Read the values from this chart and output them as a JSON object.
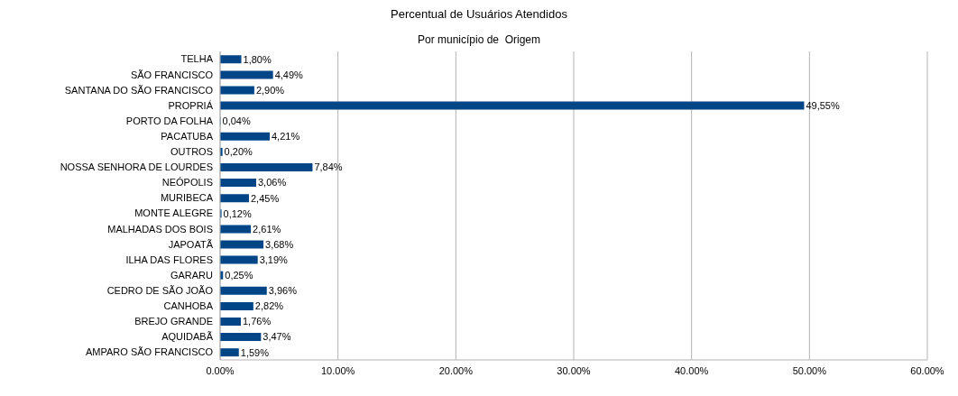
{
  "chart_data": {
    "type": "bar",
    "orientation": "horizontal",
    "title": "Percentual de Usuários Atendidos",
    "subtitle": "Por município de  Origem",
    "categories": [
      "TELHA",
      "SÃO FRANCISCO",
      "SANTANA DO SÃO FRANCISCO",
      "PROPRIÁ",
      "PORTO DA FOLHA",
      "PACATUBA",
      "OUTROS",
      "NOSSA SENHORA DE LOURDES",
      "NEÓPOLIS",
      "MURIBECA",
      "MONTE ALEGRE",
      "MALHADAS DOS BOIS",
      "JAPOATÃ",
      "ILHA DAS FLORES",
      "GARARU",
      "CEDRO DE SÃO JOÃO",
      "CANHOBA",
      "BREJO GRANDE",
      "AQUIDABÃ",
      "AMPARO SÃO FRANCISCO"
    ],
    "values": [
      1.8,
      4.49,
      2.9,
      49.55,
      0.04,
      4.21,
      0.2,
      7.84,
      3.06,
      2.45,
      0.12,
      2.61,
      3.68,
      3.19,
      0.25,
      3.96,
      2.82,
      1.76,
      3.47,
      1.59
    ],
    "value_labels": [
      "1,80%",
      "4,49%",
      "2,90%",
      "49,55%",
      "0,04%",
      "4,21%",
      "0,20%",
      "7,84%",
      "3,06%",
      "2,45%",
      "0,12%",
      "2,61%",
      "3,68%",
      "3,19%",
      "0,25%",
      "3,96%",
      "2,82%",
      "1,76%",
      "3,47%",
      "1,59%"
    ],
    "color": "#004586",
    "xlim": [
      0,
      60
    ],
    "xticks": [
      {
        "value": 0,
        "label": "0.00%"
      },
      {
        "value": 10,
        "label": "10.00%"
      },
      {
        "value": 20,
        "label": "20.00%"
      },
      {
        "value": 30,
        "label": "30.00%"
      },
      {
        "value": 40,
        "label": "40.00%"
      },
      {
        "value": 50,
        "label": "50.00%"
      },
      {
        "value": 60,
        "label": "60.00%"
      }
    ],
    "grid": "x"
  }
}
